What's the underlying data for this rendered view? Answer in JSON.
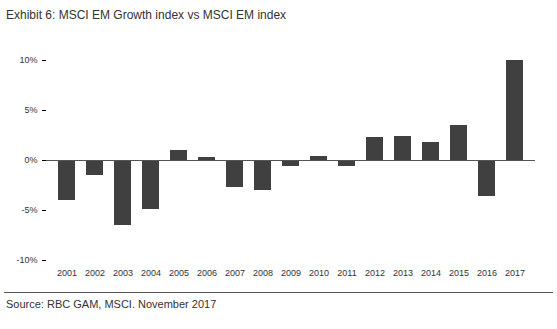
{
  "chart_data": {
    "type": "bar",
    "title": "Exhibit 6: MSCI EM Growth index vs MSCI EM index",
    "source": "Source: RBC GAM, MSCI. November 2017",
    "categories": [
      "2001",
      "2002",
      "2003",
      "2004",
      "2005",
      "2006",
      "2007",
      "2008",
      "2009",
      "2010",
      "2011",
      "2012",
      "2013",
      "2014",
      "2015",
      "2016",
      "2017"
    ],
    "values": [
      -4.0,
      -1.5,
      -6.5,
      -4.9,
      1.0,
      0.3,
      -2.7,
      -3.0,
      -0.6,
      0.4,
      -0.6,
      2.3,
      2.4,
      1.8,
      3.5,
      -3.6,
      10.0
    ],
    "color": "#404040",
    "ylim": [
      -10,
      10
    ],
    "yticks": [
      {
        "value": -10,
        "label": "-10%"
      },
      {
        "value": -5,
        "label": "-5%"
      },
      {
        "value": 0,
        "label": "0%"
      },
      {
        "value": 5,
        "label": "5%"
      },
      {
        "value": 10,
        "label": "10%"
      }
    ],
    "grid": false
  }
}
